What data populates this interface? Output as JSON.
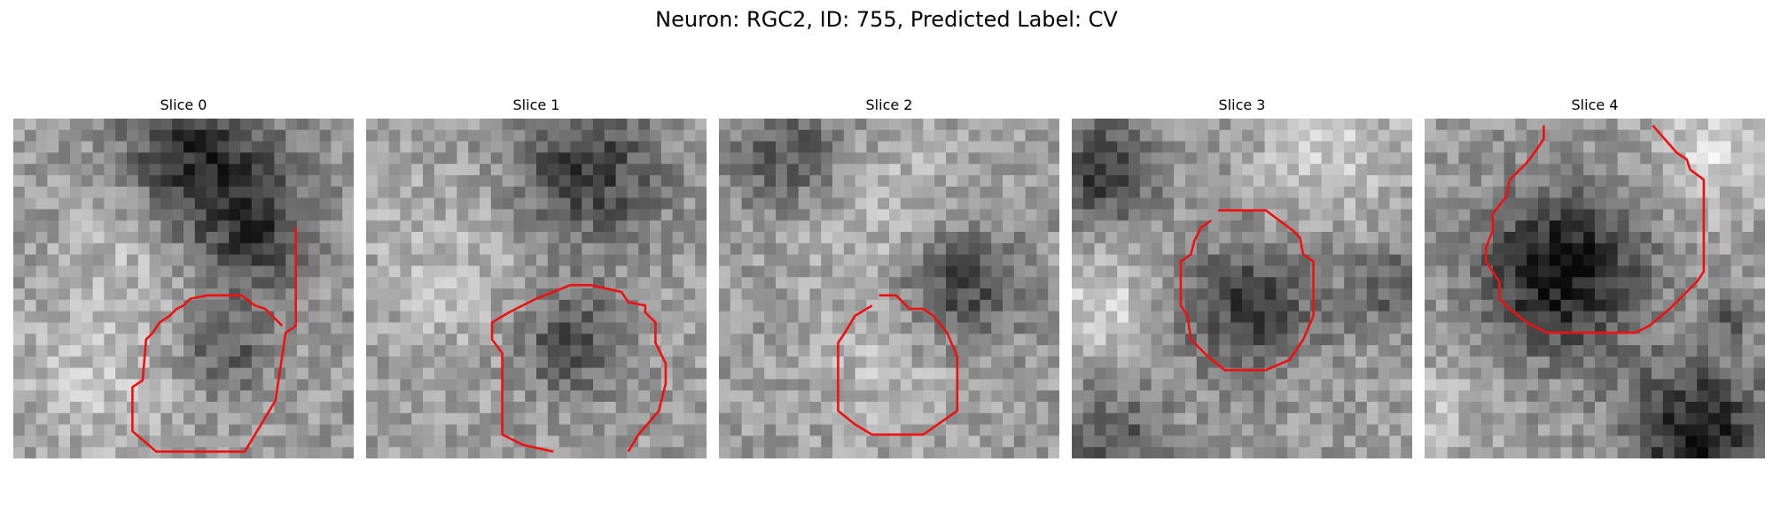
{
  "figure": {
    "title": "Neuron: RGC2, ID: 755, Predicted Label: CV"
  },
  "slices": [
    {
      "title": "Slice 0",
      "blobs": [
        [
          0.55,
          0.12,
          0.32,
          -110
        ],
        [
          0.72,
          0.35,
          0.25,
          -80
        ],
        [
          0.62,
          0.68,
          0.18,
          -70
        ],
        [
          0.25,
          0.75,
          0.35,
          40
        ],
        [
          0.35,
          0.35,
          0.25,
          35
        ]
      ],
      "contour": [
        [
          0.83,
          0.32
        ],
        [
          0.83,
          0.61
        ],
        [
          0.8,
          0.63
        ],
        [
          0.77,
          0.83
        ],
        [
          0.68,
          0.98
        ],
        [
          0.42,
          0.98
        ],
        [
          0.35,
          0.92
        ],
        [
          0.35,
          0.79
        ],
        [
          0.38,
          0.77
        ],
        [
          0.39,
          0.65
        ],
        [
          0.41,
          0.63
        ],
        [
          0.43,
          0.6
        ],
        [
          0.46,
          0.58
        ],
        [
          0.48,
          0.56
        ],
        [
          0.5,
          0.55
        ],
        [
          0.52,
          0.53
        ],
        [
          0.57,
          0.52
        ],
        [
          0.67,
          0.52
        ],
        [
          0.71,
          0.55
        ],
        [
          0.74,
          0.56
        ],
        [
          0.77,
          0.59
        ],
        [
          0.79,
          0.61
        ]
      ]
    },
    {
      "title": "Slice 1",
      "blobs": [
        [
          0.65,
          0.15,
          0.3,
          -95
        ],
        [
          0.6,
          0.65,
          0.22,
          -80
        ],
        [
          0.25,
          0.45,
          0.4,
          30
        ]
      ],
      "contour": [
        [
          0.77,
          0.98
        ],
        [
          0.8,
          0.93
        ],
        [
          0.86,
          0.86
        ],
        [
          0.88,
          0.78
        ],
        [
          0.88,
          0.72
        ],
        [
          0.85,
          0.66
        ],
        [
          0.85,
          0.6
        ],
        [
          0.82,
          0.57
        ],
        [
          0.82,
          0.55
        ],
        [
          0.77,
          0.54
        ],
        [
          0.75,
          0.51
        ],
        [
          0.66,
          0.49
        ],
        [
          0.6,
          0.49
        ],
        [
          0.5,
          0.53
        ],
        [
          0.42,
          0.57
        ],
        [
          0.37,
          0.6
        ],
        [
          0.37,
          0.65
        ],
        [
          0.4,
          0.69
        ],
        [
          0.4,
          0.93
        ],
        [
          0.46,
          0.96
        ],
        [
          0.55,
          0.98
        ]
      ]
    },
    {
      "title": "Slice 2",
      "blobs": [
        [
          0.2,
          0.1,
          0.25,
          -70
        ],
        [
          0.7,
          0.48,
          0.25,
          -100
        ],
        [
          0.5,
          0.3,
          0.4,
          35
        ],
        [
          0.5,
          0.75,
          0.3,
          30
        ]
      ],
      "contour": [
        [
          0.45,
          0.55
        ],
        [
          0.4,
          0.58
        ],
        [
          0.37,
          0.63
        ],
        [
          0.35,
          0.66
        ],
        [
          0.35,
          0.86
        ],
        [
          0.4,
          0.9
        ],
        [
          0.45,
          0.93
        ],
        [
          0.6,
          0.93
        ],
        [
          0.7,
          0.86
        ],
        [
          0.7,
          0.7
        ],
        [
          0.67,
          0.63
        ],
        [
          0.63,
          0.58
        ],
        [
          0.6,
          0.56
        ],
        [
          0.56,
          0.56
        ],
        [
          0.52,
          0.52
        ],
        [
          0.47,
          0.52
        ]
      ]
    },
    {
      "title": "Slice 3",
      "blobs": [
        [
          0.08,
          0.15,
          0.22,
          -95
        ],
        [
          0.52,
          0.55,
          0.28,
          -90
        ],
        [
          0.12,
          0.95,
          0.22,
          -70
        ],
        [
          0.95,
          0.5,
          0.2,
          -60
        ],
        [
          0.1,
          0.55,
          0.2,
          60
        ],
        [
          0.75,
          0.1,
          0.3,
          50
        ]
      ],
      "contour": [
        [
          0.43,
          0.27
        ],
        [
          0.57,
          0.27
        ],
        [
          0.65,
          0.33
        ],
        [
          0.67,
          0.35
        ],
        [
          0.68,
          0.4
        ],
        [
          0.71,
          0.42
        ],
        [
          0.71,
          0.58
        ],
        [
          0.68,
          0.65
        ],
        [
          0.64,
          0.71
        ],
        [
          0.57,
          0.74
        ],
        [
          0.45,
          0.74
        ],
        [
          0.4,
          0.7
        ],
        [
          0.35,
          0.65
        ],
        [
          0.34,
          0.58
        ],
        [
          0.32,
          0.55
        ],
        [
          0.32,
          0.42
        ],
        [
          0.35,
          0.4
        ],
        [
          0.36,
          0.36
        ],
        [
          0.38,
          0.32
        ],
        [
          0.41,
          0.3
        ]
      ]
    },
    {
      "title": "Slice 4",
      "blobs": [
        [
          0.4,
          0.45,
          0.33,
          -140
        ],
        [
          0.8,
          0.92,
          0.28,
          -130
        ],
        [
          0.9,
          0.58,
          0.1,
          -60
        ],
        [
          0.85,
          0.1,
          0.25,
          60
        ],
        [
          0.05,
          0.85,
          0.2,
          40
        ]
      ],
      "contour": [
        [
          0.35,
          0.02
        ],
        [
          0.35,
          0.06
        ],
        [
          0.33,
          0.09
        ],
        [
          0.3,
          0.13
        ],
        [
          0.25,
          0.18
        ],
        [
          0.24,
          0.23
        ],
        [
          0.2,
          0.28
        ],
        [
          0.2,
          0.33
        ],
        [
          0.18,
          0.38
        ],
        [
          0.18,
          0.42
        ],
        [
          0.2,
          0.45
        ],
        [
          0.22,
          0.48
        ],
        [
          0.22,
          0.53
        ],
        [
          0.25,
          0.56
        ],
        [
          0.3,
          0.6
        ],
        [
          0.36,
          0.63
        ],
        [
          0.62,
          0.63
        ],
        [
          0.66,
          0.61
        ],
        [
          0.72,
          0.56
        ],
        [
          0.8,
          0.48
        ],
        [
          0.82,
          0.45
        ],
        [
          0.82,
          0.18
        ],
        [
          0.78,
          0.15
        ],
        [
          0.77,
          0.12
        ],
        [
          0.74,
          0.1
        ],
        [
          0.67,
          0.02
        ]
      ]
    }
  ],
  "colors": {
    "contour": "#ee1111"
  }
}
